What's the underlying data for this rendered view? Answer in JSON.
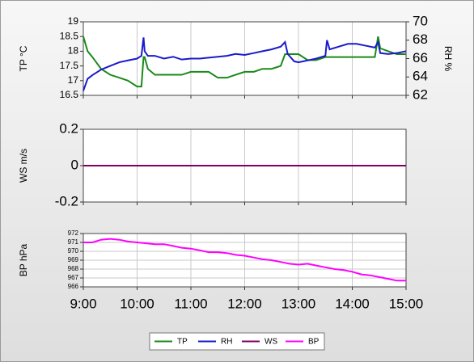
{
  "chart_data": [
    {
      "type": "line",
      "ylabel": "TP °C",
      "y2label": "RH %",
      "ylim": [
        16.5,
        19
      ],
      "yticks": [
        16.5,
        17,
        17.5,
        18,
        18.5,
        19
      ],
      "y2lim": [
        62,
        70
      ],
      "y2ticks": [
        62,
        64,
        66,
        68,
        70
      ],
      "xlim": [
        9,
        15
      ],
      "xticks": [
        9,
        10,
        11,
        12,
        13,
        14,
        15
      ],
      "grid": "x",
      "x": [
        9,
        9.08,
        9.17,
        9.25,
        9.33,
        9.5,
        9.67,
        9.83,
        10,
        10.08,
        10.12,
        10.14,
        10.2,
        10.33,
        10.5,
        10.67,
        10.83,
        11,
        11.17,
        11.33,
        11.5,
        11.67,
        11.83,
        12,
        12.17,
        12.33,
        12.5,
        12.67,
        12.75,
        12.8,
        12.92,
        13,
        13.17,
        13.33,
        13.5,
        13.53,
        13.58,
        13.75,
        13.92,
        14.08,
        14.25,
        14.42,
        14.48,
        14.52,
        14.67,
        14.83,
        15
      ],
      "series": [
        {
          "name": "TP",
          "color": "#1a8a1a",
          "axis": "y",
          "values": [
            18.5,
            18.0,
            17.8,
            17.6,
            17.4,
            17.2,
            17.1,
            17.0,
            16.8,
            16.8,
            17.8,
            17.8,
            17.4,
            17.2,
            17.2,
            17.2,
            17.2,
            17.3,
            17.3,
            17.3,
            17.1,
            17.1,
            17.2,
            17.3,
            17.3,
            17.4,
            17.4,
            17.5,
            17.9,
            17.9,
            17.9,
            17.9,
            17.7,
            17.7,
            17.8,
            17.8,
            17.8,
            17.8,
            17.8,
            17.8,
            17.8,
            17.8,
            18.5,
            18.1,
            18.0,
            17.9,
            17.9
          ]
        },
        {
          "name": "RH",
          "color": "#1a1acc",
          "axis": "y2",
          "values": [
            62.5,
            63.8,
            64.2,
            64.5,
            64.8,
            65.2,
            65.6,
            65.8,
            66.0,
            66.3,
            68.3,
            66.8,
            66.3,
            66.3,
            66.0,
            66.2,
            65.9,
            66.0,
            66.0,
            66.1,
            66.2,
            66.3,
            66.5,
            66.4,
            66.6,
            66.8,
            67.0,
            67.3,
            67.8,
            66.5,
            65.7,
            65.6,
            65.8,
            66.0,
            66.3,
            68.0,
            67.0,
            67.3,
            67.6,
            67.6,
            67.4,
            67.2,
            67.8,
            66.6,
            66.5,
            66.6,
            66.8
          ]
        }
      ]
    },
    {
      "type": "line",
      "ylabel": "WS m/s",
      "ylim": [
        -0.2,
        0.2
      ],
      "yticks": [
        -0.2,
        0,
        0.2
      ],
      "xlim": [
        9,
        15
      ],
      "xticks": [
        9,
        10,
        11,
        12,
        13,
        14,
        15
      ],
      "grid": "x",
      "x": [
        9,
        15
      ],
      "series": [
        {
          "name": "WS",
          "color": "#800060",
          "axis": "y",
          "values": [
            0,
            0
          ]
        }
      ]
    },
    {
      "type": "line",
      "ylabel": "BP hPa",
      "ylim": [
        966,
        972
      ],
      "yticks": [
        966,
        967,
        968,
        969,
        970,
        971,
        972
      ],
      "xlim": [
        9,
        15
      ],
      "xticks": [
        {
          "value": 9,
          "label": "9:00"
        },
        {
          "value": 10,
          "label": "10:00"
        },
        {
          "value": 11,
          "label": "11:00"
        },
        {
          "value": 12,
          "label": "12:00"
        },
        {
          "value": 13,
          "label": "13:00"
        },
        {
          "value": 14,
          "label": "14:00"
        },
        {
          "value": 15,
          "label": "15:00"
        }
      ],
      "grid": "both",
      "x": [
        9,
        9.17,
        9.33,
        9.5,
        9.67,
        9.83,
        10,
        10.17,
        10.33,
        10.5,
        10.67,
        10.83,
        11,
        11.17,
        11.33,
        11.5,
        11.67,
        11.83,
        12,
        12.17,
        12.33,
        12.5,
        12.67,
        12.83,
        13,
        13.17,
        13.33,
        13.5,
        13.67,
        13.83,
        14,
        14.17,
        14.33,
        14.5,
        14.67,
        14.83,
        15
      ],
      "series": [
        {
          "name": "BP",
          "color": "#ff00ff",
          "axis": "y",
          "values": [
            971.0,
            971.0,
            971.3,
            971.4,
            971.3,
            971.1,
            971.0,
            970.9,
            970.8,
            970.8,
            970.6,
            970.4,
            970.3,
            970.1,
            969.9,
            969.9,
            969.8,
            969.6,
            969.5,
            969.3,
            969.1,
            969.0,
            968.8,
            968.6,
            968.5,
            968.6,
            968.4,
            968.2,
            968.0,
            967.9,
            967.7,
            967.4,
            967.3,
            967.1,
            966.9,
            966.7,
            966.7
          ]
        }
      ]
    }
  ]
}
